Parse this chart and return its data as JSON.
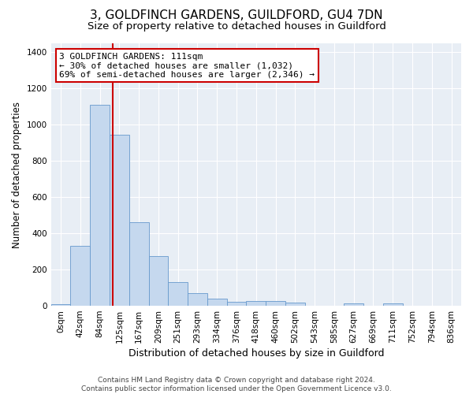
{
  "title": "3, GOLDFINCH GARDENS, GUILDFORD, GU4 7DN",
  "subtitle": "Size of property relative to detached houses in Guildford",
  "xlabel": "Distribution of detached houses by size in Guildford",
  "ylabel": "Number of detached properties",
  "footer_line1": "Contains HM Land Registry data © Crown copyright and database right 2024.",
  "footer_line2": "Contains public sector information licensed under the Open Government Licence v3.0.",
  "bar_labels": [
    "0sqm",
    "42sqm",
    "84sqm",
    "125sqm",
    "167sqm",
    "209sqm",
    "251sqm",
    "293sqm",
    "334sqm",
    "376sqm",
    "418sqm",
    "460sqm",
    "502sqm",
    "543sqm",
    "585sqm",
    "627sqm",
    "669sqm",
    "711sqm",
    "752sqm",
    "794sqm",
    "836sqm"
  ],
  "bar_values": [
    10,
    330,
    1110,
    945,
    460,
    275,
    130,
    68,
    38,
    22,
    25,
    25,
    18,
    0,
    0,
    12,
    0,
    12,
    0,
    0,
    0
  ],
  "bar_color": "#c5d8ee",
  "bar_edge_color": "#6699cc",
  "bg_color": "#e8eef5",
  "annotation_line1": "3 GOLDFINCH GARDENS: 111sqm",
  "annotation_line2": "← 30% of detached houses are smaller (1,032)",
  "annotation_line3": "69% of semi-detached houses are larger (2,346) →",
  "vline_color": "#cc0000",
  "ylim_max": 1450,
  "yticks": [
    0,
    200,
    400,
    600,
    800,
    1000,
    1200,
    1400
  ],
  "title_fontsize": 11,
  "subtitle_fontsize": 9.5,
  "xlabel_fontsize": 9,
  "ylabel_fontsize": 8.5,
  "annotation_fontsize": 8,
  "tick_fontsize": 7.5,
  "footer_fontsize": 6.5
}
